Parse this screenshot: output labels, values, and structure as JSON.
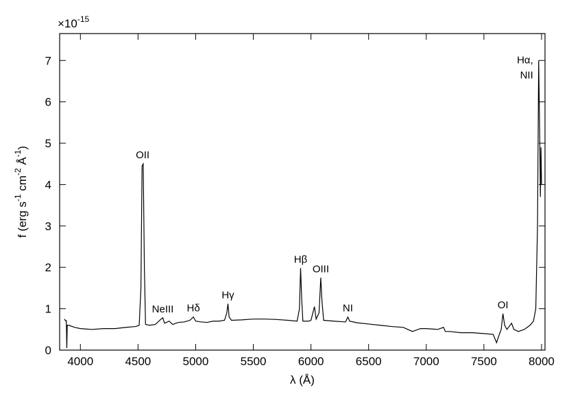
{
  "chart_data": {
    "type": "line",
    "multiplier": "×10",
    "multiplier_exp": "-15",
    "xlabel": "λ (Å)",
    "ylabel_parts": [
      "f (erg s",
      "-1",
      " cm",
      "-2",
      " Å",
      "-1",
      ")"
    ],
    "xlim": [
      3820,
      8030
    ],
    "ylim": [
      0,
      7.65
    ],
    "xticks": [
      4000,
      4500,
      5000,
      5500,
      6000,
      6500,
      7000,
      7500,
      8000
    ],
    "yticks": [
      0,
      1,
      2,
      3,
      4,
      5,
      6,
      7
    ],
    "x": [
      3860,
      3875,
      3878,
      3882,
      3886,
      3900,
      3950,
      4000,
      4100,
      4200,
      4300,
      4400,
      4480,
      4510,
      4525,
      4535,
      4545,
      4555,
      4565,
      4600,
      4650,
      4700,
      4715,
      4730,
      4770,
      4800,
      4850,
      4900,
      4950,
      4980,
      5000,
      5050,
      5100,
      5150,
      5200,
      5250,
      5270,
      5280,
      5290,
      5310,
      5400,
      5500,
      5600,
      5700,
      5800,
      5880,
      5900,
      5910,
      5920,
      5930,
      5980,
      6000,
      6030,
      6045,
      6070,
      6085,
      6095,
      6110,
      6200,
      6300,
      6320,
      6335,
      6400,
      6500,
      6600,
      6700,
      6800,
      6880,
      6950,
      7000,
      7100,
      7150,
      7165,
      7200,
      7300,
      7400,
      7500,
      7580,
      7610,
      7630,
      7650,
      7665,
      7680,
      7700,
      7740,
      7760,
      7800,
      7850,
      7900,
      7930,
      7950,
      7965,
      7975,
      7985,
      7990,
      7995,
      8000
    ],
    "series": [
      {
        "color": "#000000",
        "values": [
          0.75,
          0.7,
          0.72,
          0.05,
          0.6,
          0.6,
          0.55,
          0.52,
          0.5,
          0.52,
          0.52,
          0.55,
          0.57,
          0.6,
          1.5,
          4.45,
          4.5,
          2.0,
          0.62,
          0.6,
          0.62,
          0.75,
          0.78,
          0.65,
          0.7,
          0.62,
          0.67,
          0.68,
          0.72,
          0.8,
          0.7,
          0.68,
          0.67,
          0.7,
          0.7,
          0.72,
          0.9,
          1.12,
          0.8,
          0.72,
          0.73,
          0.75,
          0.75,
          0.74,
          0.72,
          0.7,
          1.0,
          1.98,
          1.2,
          0.7,
          0.7,
          0.72,
          1.05,
          0.75,
          0.9,
          1.75,
          1.2,
          0.72,
          0.7,
          0.68,
          0.8,
          0.7,
          0.66,
          0.63,
          0.6,
          0.57,
          0.55,
          0.45,
          0.52,
          0.52,
          0.5,
          0.55,
          0.45,
          0.45,
          0.42,
          0.42,
          0.4,
          0.38,
          0.18,
          0.35,
          0.5,
          0.88,
          0.6,
          0.5,
          0.65,
          0.5,
          0.45,
          0.5,
          0.6,
          0.7,
          1.0,
          3.0,
          7.0,
          5.0,
          3.7,
          4.9,
          4.0
        ]
      }
    ],
    "annotations": [
      {
        "x": 4540,
        "lines": [
          "OII"
        ]
      },
      {
        "x": 4715,
        "lines": [
          "NeIII"
        ]
      },
      {
        "x": 4980,
        "lines": [
          "Hδ"
        ]
      },
      {
        "x": 5280,
        "lines": [
          "Hγ"
        ]
      },
      {
        "x": 5910,
        "lines": [
          "Hβ"
        ]
      },
      {
        "x": 6085,
        "lines": [
          "OIII"
        ]
      },
      {
        "x": 6320,
        "lines": [
          "NI"
        ]
      },
      {
        "x": 7665,
        "lines": [
          "OI"
        ]
      },
      {
        "x": 7975,
        "lines": [
          "Hα,",
          "NII"
        ]
      }
    ]
  }
}
